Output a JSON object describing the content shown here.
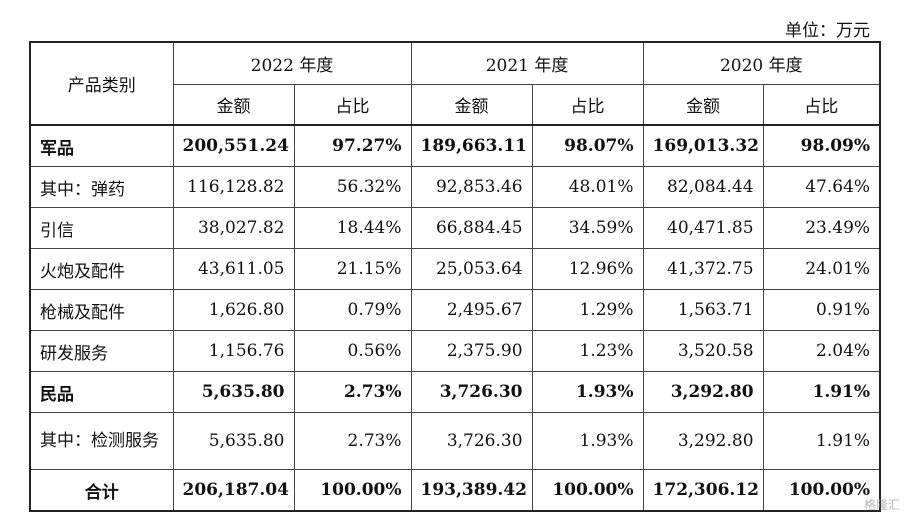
{
  "unit": "单位：万元",
  "header": {
    "category": "产品类别",
    "years": [
      "2022 年度",
      "2021 年度",
      "2020 年度"
    ],
    "amount": "金额",
    "share": "占比"
  },
  "rows": [
    {
      "label": "军品",
      "values": [
        "200,551.24",
        "97.27%",
        "189,663.11",
        "98.07%",
        "169,013.32",
        "98.09%"
      ]
    },
    {
      "label": "其中：弹药",
      "values": [
        "116,128.82",
        "56.32%",
        "92,853.46",
        "48.01%",
        "82,084.44",
        "47.64%"
      ]
    },
    {
      "label": "引信",
      "values": [
        "38,027.82",
        "18.44%",
        "66,884.45",
        "34.59%",
        "40,471.85",
        "23.49%"
      ]
    },
    {
      "label": "火炮及配件",
      "values": [
        "43,611.05",
        "21.15%",
        "25,053.64",
        "12.96%",
        "41,372.75",
        "24.01%"
      ]
    },
    {
      "label": "枪械及配件",
      "values": [
        "1,626.80",
        "0.79%",
        "2,495.67",
        "1.29%",
        "1,563.71",
        "0.91%"
      ]
    },
    {
      "label": "研发服务",
      "values": [
        "1,156.76",
        "0.56%",
        "2,375.90",
        "1.23%",
        "3,520.58",
        "2.04%"
      ]
    },
    {
      "label": "民品",
      "values": [
        "5,635.80",
        "2.73%",
        "3,726.30",
        "1.93%",
        "3,292.80",
        "1.91%"
      ]
    },
    {
      "label": "其中：检测服务",
      "values": [
        "5,635.80",
        "2.73%",
        "3,726.30",
        "1.93%",
        "3,292.80",
        "1.91%"
      ]
    },
    {
      "label": "合计",
      "values": [
        "206,187.04",
        "100.00%",
        "193,389.42",
        "100.00%",
        "172,306.12",
        "100.00%"
      ]
    }
  ],
  "watermark": "格隆汇"
}
